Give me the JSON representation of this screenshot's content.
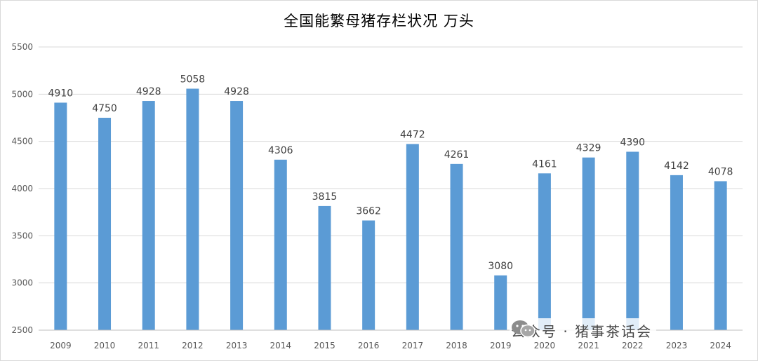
{
  "chart_data": {
    "type": "bar",
    "title": "全国能繁母猪存栏状况  万头",
    "categories": [
      "2009",
      "2010",
      "2011",
      "2012",
      "2013",
      "2014",
      "2015",
      "2016",
      "2017",
      "2018",
      "2019",
      "2020",
      "2021",
      "2022",
      "2023",
      "2024"
    ],
    "values": [
      4910,
      4750,
      4928,
      5058,
      4928,
      4306,
      3815,
      3662,
      4472,
      4261,
      3080,
      4161,
      4329,
      4390,
      4142,
      4078
    ],
    "ylim": [
      2500,
      5500
    ],
    "yticks": [
      2500,
      3000,
      3500,
      4000,
      4500,
      5000,
      5500
    ],
    "grid": true,
    "bar_color": "#5b9bd5",
    "data_labels": true
  },
  "watermark": {
    "icon": "wechat-icon",
    "text": "公众号 · 猪事茶话会"
  }
}
